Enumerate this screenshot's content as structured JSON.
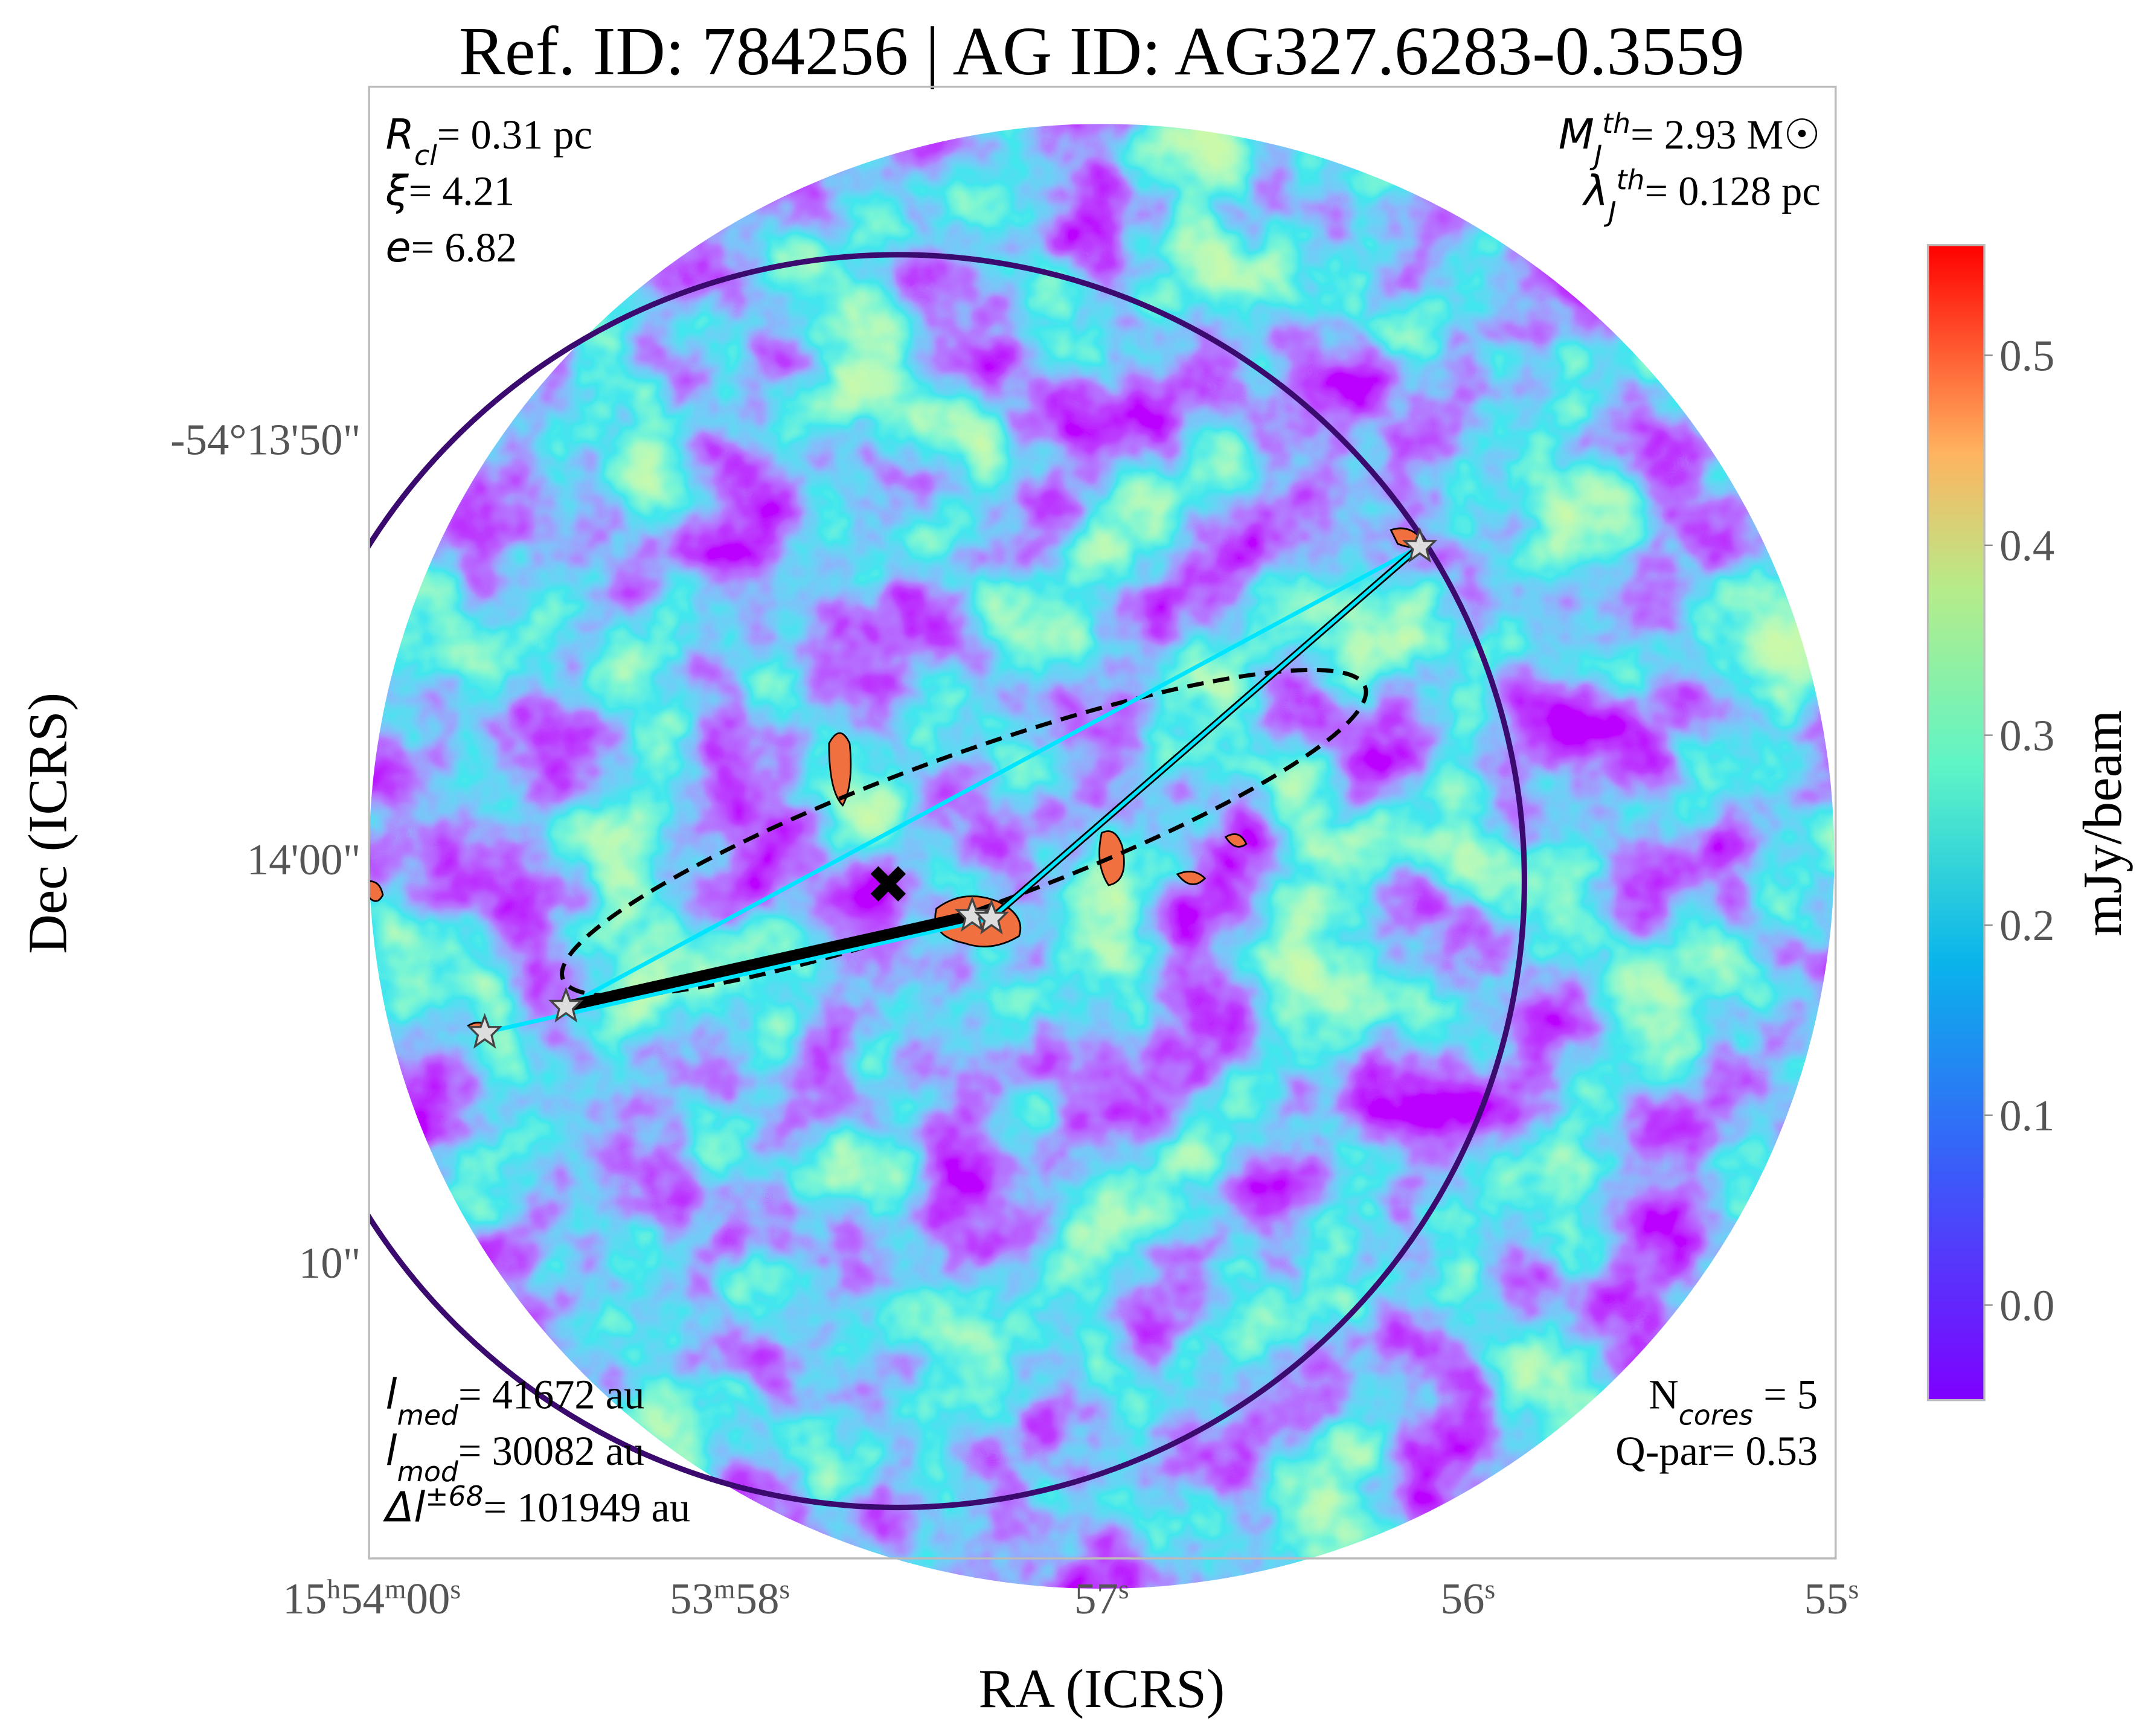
{
  "chart_data": {
    "type": "image",
    "title": "Ref. ID: 784256 | AG ID: AG327.6283-0.3559",
    "xlabel": "RA (ICRS)",
    "ylabel": "Dec (ICRS)",
    "xtick_labels": [
      "15h54m00s",
      "53m58s",
      "57s",
      "56s",
      "55s"
    ],
    "ytick_labels": [
      "-54°13'50\"",
      "14'00\"",
      "10\""
    ],
    "colorbar": {
      "label": "mJy/beam",
      "ylim": [
        -0.05,
        0.558
      ],
      "yticks": [
        {
          "value": 0,
          "label": "0.0"
        },
        0.1,
        0.2,
        0.3,
        0.4,
        0.5
      ]
    },
    "annotations": {
      "top_left": [
        [
          {
            "text": "R",
            "style": "italic"
          },
          {
            "text": "cl",
            "style": "sub"
          },
          {
            "text": "= 0.31 pc",
            "style": "normal"
          }
        ],
        [
          {
            "text": "ξ",
            "style": "italic"
          },
          {
            "text": "= 4.21",
            "style": "normal"
          }
        ],
        [
          {
            "text": "e",
            "style": "italic"
          },
          {
            "text": "= 6.82",
            "style": "normal"
          }
        ]
      ],
      "top_right": [
        [
          {
            "text": "M",
            "style": "italic"
          },
          {
            "text": "J",
            "style": "sub"
          },
          {
            "text": "th",
            "style": "sup"
          },
          {
            "text": "= 2.93 M☉",
            "style": "normal"
          }
        ],
        [
          {
            "text": "λ",
            "style": "italic"
          },
          {
            "text": "J",
            "style": "sub"
          },
          {
            "text": "th",
            "style": "sup"
          },
          {
            "text": "= 0.128 pc",
            "style": "normal"
          }
        ]
      ],
      "bottom_left": [
        [
          {
            "text": "l",
            "style": "italic"
          },
          {
            "text": "med",
            "style": "sub"
          },
          {
            "text": "= 41672 au",
            "style": "normal"
          }
        ],
        [
          {
            "text": "l",
            "style": "italic"
          },
          {
            "text": "mod",
            "style": "sub"
          },
          {
            "text": "= 30082 au",
            "style": "normal"
          }
        ],
        [
          {
            "text": "Δl",
            "style": "italic"
          },
          {
            "text": "±68",
            "style": "sup"
          },
          {
            "text": "= 101949 au",
            "style": "normal"
          }
        ]
      ],
      "bottom_right": [
        [
          {
            "text": "N",
            "style": "normal"
          },
          {
            "text": "cores",
            "style": "sub"
          },
          {
            "text": " = 5",
            "style": "normal"
          }
        ],
        [
          {
            "text": "Q-par= 0.53",
            "style": "normal"
          }
        ]
      ]
    }
  }
}
